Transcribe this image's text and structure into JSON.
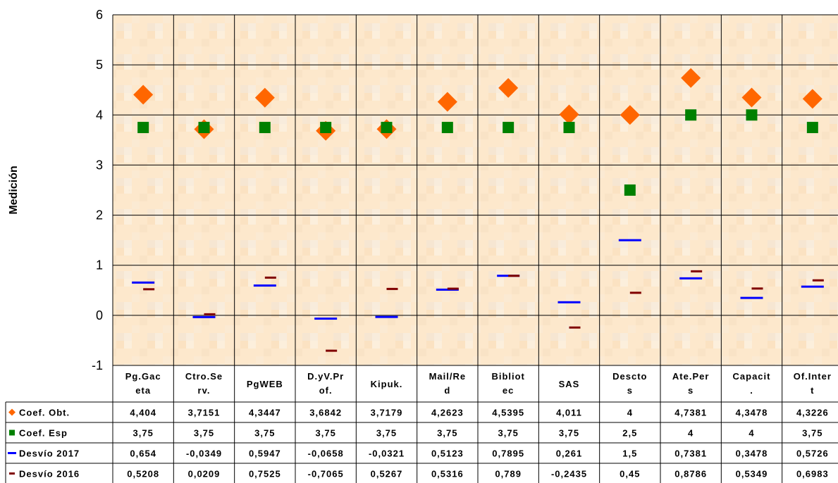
{
  "chart_data": {
    "type": "scatter",
    "ylabel": "Medición",
    "ylim": [
      -1,
      6
    ],
    "yticks": [
      -1,
      0,
      1,
      2,
      3,
      4,
      5,
      6
    ],
    "grid": true,
    "categories": [
      [
        "Pg.Gac",
        "eta"
      ],
      [
        "Ctro.Se",
        "rv."
      ],
      [
        "PgWEB"
      ],
      [
        "D.yV.Pr",
        "of."
      ],
      [
        "Kipuk."
      ],
      [
        "Mail/Re",
        "d"
      ],
      [
        "Bibliot",
        "ec"
      ],
      [
        "SAS"
      ],
      [
        "Descto",
        "s"
      ],
      [
        "Ate.Per",
        "s"
      ],
      [
        "Capacit",
        "."
      ],
      [
        "Of.Inter",
        "t"
      ]
    ],
    "series": [
      {
        "name": "Coef. Obt.",
        "marker": "diamond",
        "color": "#ff6600",
        "values": [
          4.404,
          3.7151,
          4.3447,
          3.6842,
          3.7179,
          4.2623,
          4.5395,
          4.011,
          4,
          4.7381,
          4.3478,
          4.3226
        ],
        "labels": [
          "4,404",
          "3,7151",
          "4,3447",
          "3,6842",
          "3,7179",
          "4,2623",
          "4,5395",
          "4,011",
          "4",
          "4,7381",
          "4,3478",
          "4,3226"
        ]
      },
      {
        "name": "Coef. Esp",
        "marker": "square",
        "color": "#008000",
        "values": [
          3.75,
          3.75,
          3.75,
          3.75,
          3.75,
          3.75,
          3.75,
          3.75,
          2.5,
          4,
          4,
          3.75
        ],
        "labels": [
          "3,75",
          "3,75",
          "3,75",
          "3,75",
          "3,75",
          "3,75",
          "3,75",
          "3,75",
          "2,5",
          "4",
          "4",
          "3,75"
        ]
      },
      {
        "name": "Desvío 2017",
        "marker": "dash",
        "color": "#0000ff",
        "values": [
          0.654,
          -0.0349,
          0.5947,
          -0.0658,
          -0.0321,
          0.5123,
          0.7895,
          0.261,
          1.5,
          0.7381,
          0.3478,
          0.5726
        ],
        "labels": [
          "0,654",
          "-0,0349",
          "0,5947",
          "-0,0658",
          "-0,0321",
          "0,5123",
          "0,7895",
          "0,261",
          "1,5",
          "0,7381",
          "0,3478",
          "0,5726"
        ]
      },
      {
        "name": "Desvío 2016",
        "marker": "dash-small",
        "color": "#800000",
        "values": [
          0.5208,
          0.0209,
          0.7525,
          -0.7065,
          0.5267,
          0.5316,
          0.789,
          -0.2435,
          0.45,
          0.8786,
          0.5349,
          0.6983
        ],
        "labels": [
          "0,5208",
          "0,0209",
          "0,7525",
          "-0,7065",
          "0,5267",
          "0,5316",
          "0,789",
          "-0,2435",
          "0,45",
          "0,8786",
          "0,5349",
          "0,6983"
        ]
      }
    ]
  },
  "colors": {
    "plot_background": "#fde9cf",
    "grid": "#000000"
  }
}
